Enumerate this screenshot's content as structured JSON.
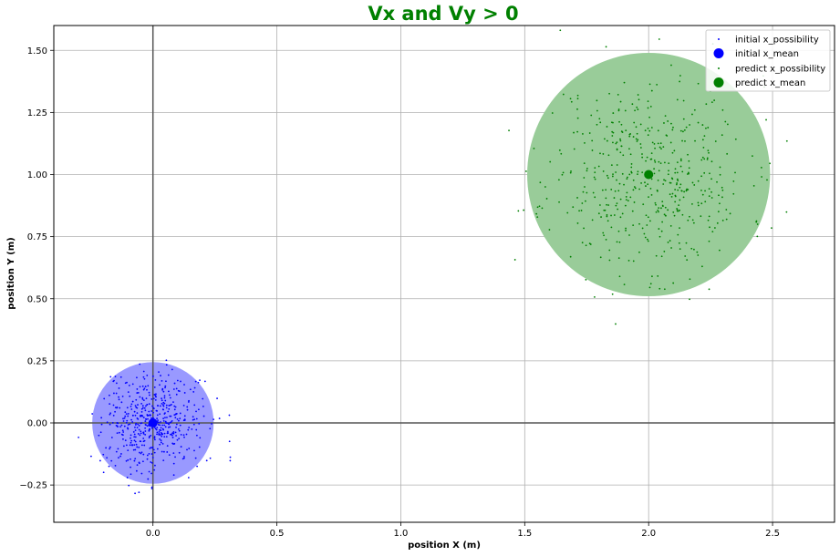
{
  "chart_data": {
    "type": "scatter",
    "title": "Vx and Vy > 0",
    "title_color": "#008000",
    "xlabel": "position X (m)",
    "ylabel": "position Y (m)",
    "xlim": [
      -0.4,
      2.75
    ],
    "ylim": [
      -0.4,
      1.6
    ],
    "xticks": [
      0.0,
      0.5,
      1.0,
      1.5,
      2.0,
      2.5
    ],
    "xtick_labels": [
      "0.0",
      "0.5",
      "1.0",
      "1.5",
      "2.0",
      "2.5"
    ],
    "yticks": [
      -0.25,
      0.0,
      0.25,
      0.5,
      0.75,
      1.0,
      1.25,
      1.5
    ],
    "ytick_labels": [
      "−0.25",
      "0.00",
      "0.25",
      "0.50",
      "0.75",
      "1.00",
      "1.25",
      "1.50"
    ],
    "grid": true,
    "legend_position": "top-right",
    "reference_lines": {
      "x": 0,
      "y": 0
    },
    "series": [
      {
        "name": "initial x_possibility",
        "kind": "points",
        "color": "#0000ff",
        "center": [
          0.0,
          0.0
        ],
        "spread": 0.1,
        "count": 500,
        "seed": 7
      },
      {
        "name": "initial x_mean",
        "kind": "mean",
        "color": "#0000ff",
        "x": 0.0,
        "y": 0.0,
        "ellipse_radius": [
          0.245,
          0.245
        ],
        "ellipse_color": "#9999ff"
      },
      {
        "name": "predict x_possibility",
        "kind": "points",
        "color": "#008000",
        "center": [
          2.0,
          1.0
        ],
        "spread": 0.2,
        "count": 500,
        "seed": 11
      },
      {
        "name": "predict x_mean",
        "kind": "mean",
        "color": "#008000",
        "x": 2.0,
        "y": 1.0,
        "ellipse_radius": [
          0.49,
          0.49
        ],
        "ellipse_color": "#99cc99"
      }
    ]
  }
}
